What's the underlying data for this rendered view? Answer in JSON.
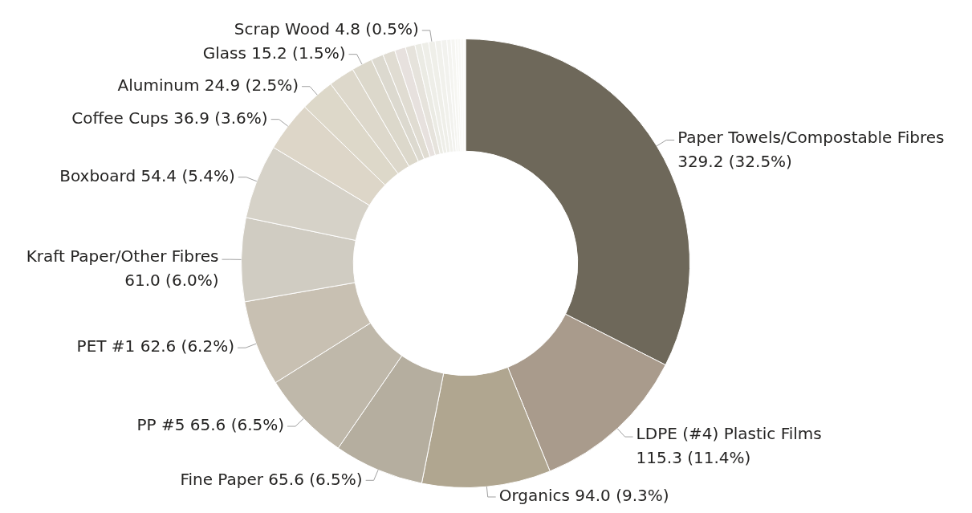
{
  "chart_data": {
    "type": "donut",
    "categories": [
      "Paper Towels/Compostable Fibres",
      "LDPE (#4) Plastic Films",
      "Organics",
      "Fine Paper",
      "PP #5",
      "PET #1",
      "Kraft Paper/Other Fibres",
      "Boxboard",
      "Coffee Cups",
      "Aluminum",
      null,
      "Glass",
      null,
      null,
      null,
      null,
      null,
      null,
      "Scrap Wood",
      null,
      null,
      null,
      null,
      null,
      null,
      null,
      null
    ],
    "values": [
      329.2,
      115.3,
      94.0,
      65.6,
      65.6,
      62.6,
      61.0,
      54.4,
      36.9,
      24.9,
      19,
      15.2,
      9,
      9,
      8,
      7,
      5,
      5,
      4.8,
      4.5,
      4,
      3,
      3,
      2,
      2,
      2,
      1.5
    ],
    "value_labels": [
      "329.2 (32.5%)",
      "115.3 (11.4%)",
      "94.0 (9.3%)",
      "65.6 (6.5%)",
      "65.6 (6.5%)",
      "62.6 (6.2%)",
      "61.0 (6.0%)",
      "54.4 (5.4%)",
      "36.9 (3.6%)",
      "24.9 (2.5%)",
      null,
      "15.2 (1.5%)",
      null,
      null,
      null,
      null,
      null,
      null,
      "4.8 (0.5%)",
      null,
      null,
      null,
      null,
      null,
      null,
      null,
      null
    ],
    "colors": [
      "#6e685a",
      "#a99b8c",
      "#b0a690",
      "#b5ae9f",
      "#bfb8aa",
      "#c8c0b2",
      "#d0ccc2",
      "#d6d2c8",
      "#ddd6c8",
      "#ddd8c9",
      "#ddd8cb",
      "#dcd8cb",
      "#dcd9cf",
      "#e0dcd2",
      "#e7e1de",
      "#e6e3dc",
      "#ebebe4",
      "#eeeee8",
      "#efefe9",
      "#f1f1ec",
      "#f2f2ee",
      "#f4f4f0",
      "#f6f6f2",
      "#f8f8f4",
      "#f9f9f6",
      "#fbfbf8",
      "#fdfdfb"
    ]
  }
}
